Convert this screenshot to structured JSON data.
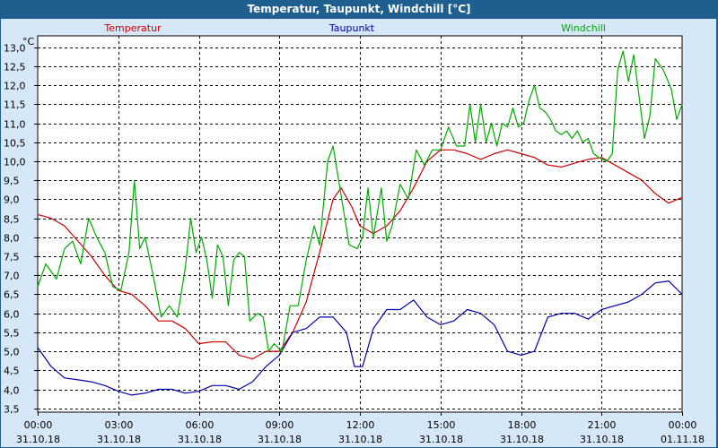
{
  "window": {
    "title": "Temperatur, Taupunkt, Windchill [°C]"
  },
  "chart_data": {
    "type": "line",
    "title": "Temperatur, Taupunkt, Windchill [°C]",
    "ylabel": "°C",
    "ylim": [
      3.4,
      13.3
    ],
    "xlim": [
      0,
      24
    ],
    "grid": true,
    "legend_position": "top",
    "y_ticks": [
      "3,5",
      "4,0",
      "4,5",
      "5,0",
      "5,5",
      "6,0",
      "6,5",
      "7,0",
      "7,5",
      "8,0",
      "8,5",
      "9,0",
      "9,5",
      "10,0",
      "10,5",
      "11,0",
      "11,5",
      "12,0",
      "12,5",
      "13,0"
    ],
    "x_ticks": [
      {
        "time": "00:00",
        "date": "31.10.18"
      },
      {
        "time": "03:00",
        "date": "31.10.18"
      },
      {
        "time": "06:00",
        "date": "31.10.18"
      },
      {
        "time": "09:00",
        "date": "31.10.18"
      },
      {
        "time": "12:00",
        "date": "31.10.18"
      },
      {
        "time": "15:00",
        "date": "31.10.18"
      },
      {
        "time": "18:00",
        "date": "31.10.18"
      },
      {
        "time": "21:00",
        "date": "31.10.18"
      },
      {
        "time": "00:00",
        "date": "01.11.18"
      }
    ],
    "series": [
      {
        "name": "Temperatur",
        "color": "#cc0000",
        "points": [
          [
            0.0,
            8.6
          ],
          [
            0.5,
            8.5
          ],
          [
            1.0,
            8.3
          ],
          [
            1.5,
            7.9
          ],
          [
            2.0,
            7.5
          ],
          [
            2.5,
            7.0
          ],
          [
            3.0,
            6.6
          ],
          [
            3.5,
            6.5
          ],
          [
            4.0,
            6.2
          ],
          [
            4.5,
            5.8
          ],
          [
            5.0,
            5.8
          ],
          [
            5.5,
            5.6
          ],
          [
            6.0,
            5.2
          ],
          [
            6.5,
            5.25
          ],
          [
            7.0,
            5.25
          ],
          [
            7.5,
            4.9
          ],
          [
            8.0,
            4.8
          ],
          [
            8.5,
            5.0
          ],
          [
            9.0,
            5.0
          ],
          [
            9.5,
            5.5
          ],
          [
            10.0,
            6.3
          ],
          [
            10.5,
            7.6
          ],
          [
            11.0,
            9.0
          ],
          [
            11.3,
            9.3
          ],
          [
            11.7,
            8.8
          ],
          [
            12.0,
            8.3
          ],
          [
            12.5,
            8.1
          ],
          [
            13.0,
            8.3
          ],
          [
            13.5,
            8.7
          ],
          [
            14.0,
            9.3
          ],
          [
            14.5,
            10.0
          ],
          [
            15.0,
            10.3
          ],
          [
            15.5,
            10.3
          ],
          [
            16.0,
            10.2
          ],
          [
            16.5,
            10.05
          ],
          [
            17.0,
            10.2
          ],
          [
            17.5,
            10.3
          ],
          [
            18.0,
            10.2
          ],
          [
            18.5,
            10.1
          ],
          [
            19.0,
            9.9
          ],
          [
            19.5,
            9.85
          ],
          [
            20.0,
            9.95
          ],
          [
            20.5,
            10.05
          ],
          [
            21.0,
            10.1
          ],
          [
            21.5,
            9.9
          ],
          [
            22.0,
            9.7
          ],
          [
            22.5,
            9.5
          ],
          [
            23.0,
            9.15
          ],
          [
            23.5,
            8.9
          ],
          [
            24.0,
            9.05
          ]
        ]
      },
      {
        "name": "Taupunkt",
        "color": "#0000aa",
        "points": [
          [
            0.0,
            5.1
          ],
          [
            0.5,
            4.6
          ],
          [
            1.0,
            4.3
          ],
          [
            1.5,
            4.25
          ],
          [
            2.0,
            4.2
          ],
          [
            2.5,
            4.1
          ],
          [
            3.0,
            3.95
          ],
          [
            3.5,
            3.85
          ],
          [
            4.0,
            3.9
          ],
          [
            4.5,
            4.0
          ],
          [
            5.0,
            4.0
          ],
          [
            5.5,
            3.9
          ],
          [
            6.0,
            3.95
          ],
          [
            6.5,
            4.1
          ],
          [
            7.0,
            4.1
          ],
          [
            7.5,
            4.0
          ],
          [
            8.0,
            4.2
          ],
          [
            8.5,
            4.6
          ],
          [
            9.0,
            4.9
          ],
          [
            9.5,
            5.5
          ],
          [
            10.0,
            5.6
          ],
          [
            10.5,
            5.9
          ],
          [
            11.0,
            5.9
          ],
          [
            11.5,
            5.5
          ],
          [
            11.8,
            4.6
          ],
          [
            12.1,
            4.6
          ],
          [
            12.5,
            5.6
          ],
          [
            13.0,
            6.1
          ],
          [
            13.5,
            6.1
          ],
          [
            14.0,
            6.35
          ],
          [
            14.5,
            5.9
          ],
          [
            15.0,
            5.7
          ],
          [
            15.5,
            5.8
          ],
          [
            16.0,
            6.1
          ],
          [
            16.5,
            6.0
          ],
          [
            17.0,
            5.7
          ],
          [
            17.5,
            5.0
          ],
          [
            18.0,
            4.9
          ],
          [
            18.5,
            5.0
          ],
          [
            19.0,
            5.9
          ],
          [
            19.5,
            6.0
          ],
          [
            20.0,
            6.0
          ],
          [
            20.5,
            5.85
          ],
          [
            21.0,
            6.1
          ],
          [
            21.5,
            6.2
          ],
          [
            22.0,
            6.3
          ],
          [
            22.5,
            6.5
          ],
          [
            23.0,
            6.8
          ],
          [
            23.5,
            6.85
          ],
          [
            24.0,
            6.5
          ]
        ]
      },
      {
        "name": "Windchill",
        "color": "#00aa00",
        "points": [
          [
            0.0,
            6.7
          ],
          [
            0.3,
            7.3
          ],
          [
            0.7,
            6.9
          ],
          [
            1.0,
            7.7
          ],
          [
            1.3,
            7.9
          ],
          [
            1.6,
            7.3
          ],
          [
            1.9,
            8.5
          ],
          [
            2.2,
            8.0
          ],
          [
            2.5,
            7.6
          ],
          [
            2.8,
            6.7
          ],
          [
            3.1,
            6.6
          ],
          [
            3.4,
            7.6
          ],
          [
            3.6,
            9.5
          ],
          [
            3.8,
            7.7
          ],
          [
            4.0,
            8.0
          ],
          [
            4.3,
            7.0
          ],
          [
            4.6,
            5.9
          ],
          [
            4.9,
            6.2
          ],
          [
            5.2,
            5.9
          ],
          [
            5.5,
            7.2
          ],
          [
            5.7,
            8.5
          ],
          [
            5.9,
            7.6
          ],
          [
            6.1,
            8.0
          ],
          [
            6.3,
            7.4
          ],
          [
            6.5,
            6.4
          ],
          [
            6.7,
            7.8
          ],
          [
            6.9,
            7.5
          ],
          [
            7.1,
            6.2
          ],
          [
            7.3,
            7.4
          ],
          [
            7.5,
            7.6
          ],
          [
            7.7,
            7.5
          ],
          [
            7.9,
            5.8
          ],
          [
            8.2,
            6.0
          ],
          [
            8.4,
            5.9
          ],
          [
            8.6,
            5.0
          ],
          [
            8.8,
            5.2
          ],
          [
            9.1,
            5.0
          ],
          [
            9.4,
            6.2
          ],
          [
            9.7,
            6.2
          ],
          [
            10.0,
            7.4
          ],
          [
            10.3,
            8.3
          ],
          [
            10.5,
            7.8
          ],
          [
            10.8,
            10.0
          ],
          [
            11.0,
            10.4
          ],
          [
            11.3,
            9.1
          ],
          [
            11.6,
            7.8
          ],
          [
            11.9,
            7.7
          ],
          [
            12.1,
            8.0
          ],
          [
            12.3,
            9.3
          ],
          [
            12.5,
            8.0
          ],
          [
            12.8,
            9.3
          ],
          [
            13.0,
            7.9
          ],
          [
            13.2,
            8.3
          ],
          [
            13.5,
            9.4
          ],
          [
            13.8,
            9.0
          ],
          [
            14.1,
            10.3
          ],
          [
            14.4,
            9.9
          ],
          [
            14.7,
            10.3
          ],
          [
            15.0,
            10.3
          ],
          [
            15.3,
            10.9
          ],
          [
            15.6,
            10.4
          ],
          [
            15.9,
            10.4
          ],
          [
            16.1,
            11.5
          ],
          [
            16.3,
            10.5
          ],
          [
            16.5,
            11.5
          ],
          [
            16.7,
            10.5
          ],
          [
            16.9,
            11.0
          ],
          [
            17.1,
            10.4
          ],
          [
            17.3,
            11.0
          ],
          [
            17.5,
            10.9
          ],
          [
            17.7,
            11.4
          ],
          [
            17.9,
            10.9
          ],
          [
            18.1,
            11.0
          ],
          [
            18.3,
            11.6
          ],
          [
            18.5,
            12.0
          ],
          [
            18.7,
            11.4
          ],
          [
            18.9,
            11.3
          ],
          [
            19.1,
            11.1
          ],
          [
            19.3,
            10.8
          ],
          [
            19.5,
            10.7
          ],
          [
            19.7,
            10.8
          ],
          [
            19.9,
            10.6
          ],
          [
            20.1,
            10.8
          ],
          [
            20.3,
            10.5
          ],
          [
            20.5,
            10.6
          ],
          [
            20.7,
            10.2
          ],
          [
            20.9,
            10.1
          ],
          [
            21.2,
            10.0
          ],
          [
            21.4,
            10.2
          ],
          [
            21.6,
            12.4
          ],
          [
            21.8,
            12.9
          ],
          [
            22.0,
            12.1
          ],
          [
            22.2,
            12.8
          ],
          [
            22.4,
            11.7
          ],
          [
            22.6,
            10.6
          ],
          [
            22.8,
            11.2
          ],
          [
            23.0,
            12.7
          ],
          [
            23.3,
            12.4
          ],
          [
            23.6,
            11.9
          ],
          [
            23.8,
            11.1
          ],
          [
            24.0,
            11.5
          ]
        ]
      }
    ]
  }
}
